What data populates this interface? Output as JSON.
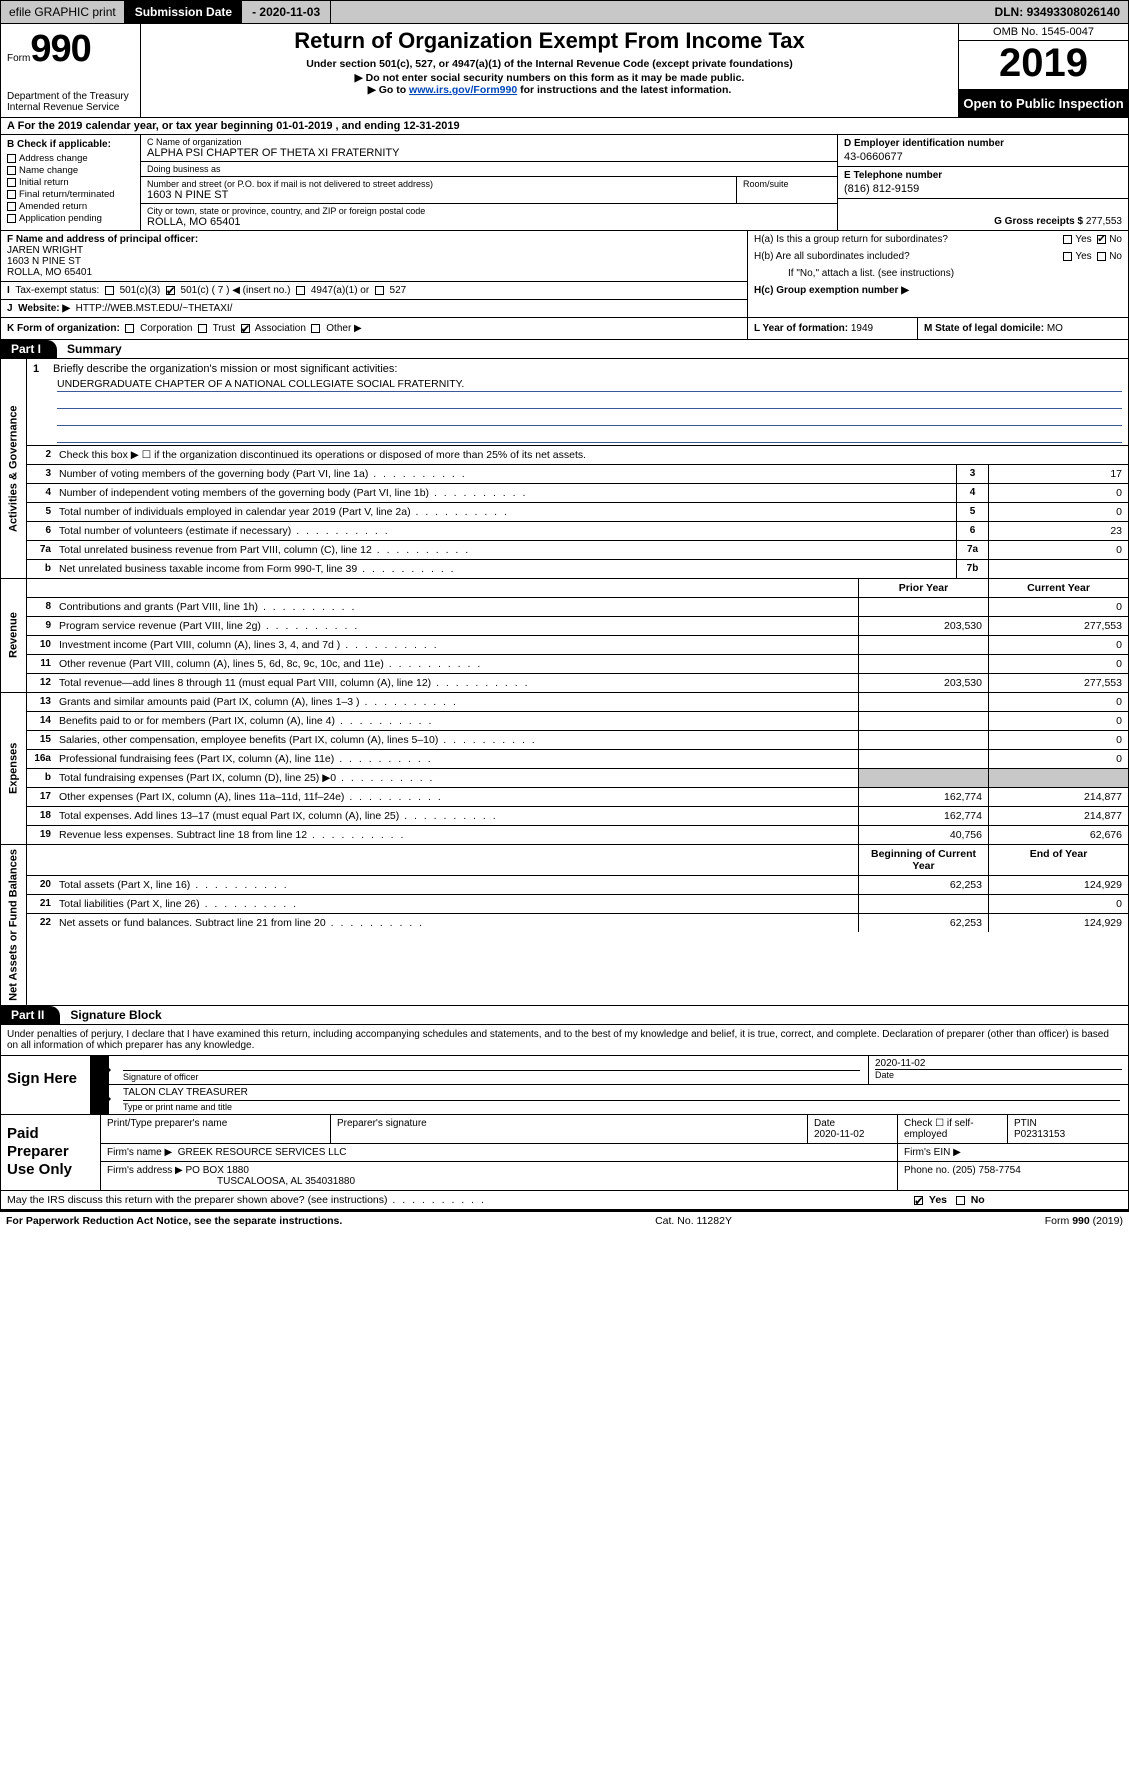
{
  "topbar": {
    "efile": "efile GRAPHIC print",
    "sub_label": "Submission Date",
    "sub_date": "2020-11-03",
    "dln_label": "DLN:",
    "dln": "93493308026140"
  },
  "header": {
    "form_word": "Form",
    "form_num": "990",
    "dept": "Department of the Treasury\nInternal Revenue Service",
    "title": "Return of Organization Exempt From Income Tax",
    "sub": "Under section 501(c), 527, or 4947(a)(1) of the Internal Revenue Code (except private foundations)",
    "line1": "Do not enter social security numbers on this form as it may be made public.",
    "line2_pre": "Go to ",
    "line2_link": "www.irs.gov/Form990",
    "line2_post": " for instructions and the latest information.",
    "omb": "OMB No. 1545-0047",
    "year": "2019",
    "open": "Open to Public Inspection"
  },
  "ty_row": "For the 2019 calendar year, or tax year beginning 01-01-2019   , and ending 12-31-2019",
  "boxB": {
    "head": "B Check if applicable:",
    "items": [
      "Address change",
      "Name change",
      "Initial return",
      "Final return/terminated",
      "Amended return",
      "Application pending"
    ]
  },
  "boxC": {
    "name_lab": "C Name of organization",
    "name": "ALPHA PSI CHAPTER OF THETA XI FRATERNITY",
    "dba_lab": "Doing business as",
    "dba": "",
    "addr_lab": "Number and street (or P.O. box if mail is not delivered to street address)",
    "room_lab": "Room/suite",
    "addr": "1603 N PINE ST",
    "city_lab": "City or town, state or province, country, and ZIP or foreign postal code",
    "city": "ROLLA, MO  65401"
  },
  "boxD": {
    "lab": "D Employer identification number",
    "val": "43-0660677"
  },
  "boxE": {
    "lab": "E Telephone number",
    "val": "(816) 812-9159"
  },
  "boxG": {
    "lab": "G Gross receipts $",
    "val": "277,553"
  },
  "boxF": {
    "lab": "F  Name and address of principal officer:",
    "name": "JAREN WRIGHT",
    "addr1": "1603 N PINE ST",
    "addr2": "ROLLA, MO  65401"
  },
  "boxH": {
    "a": "H(a)  Is this a group return for subordinates?",
    "b": "H(b)  Are all subordinates included?",
    "b_note": "If \"No,\" attach a list. (see instructions)",
    "c": "H(c)  Group exemption number ▶",
    "yes": "Yes",
    "no": "No"
  },
  "boxI": {
    "lab": "Tax-exempt status:",
    "opts": [
      "501(c)(3)",
      "501(c) ( 7 ) ◀ (insert no.)",
      "4947(a)(1) or",
      "527"
    ]
  },
  "boxJ": {
    "lab": "Website: ▶",
    "val": "HTTP://WEB.MST.EDU/~THETAXI/"
  },
  "boxK": {
    "lab": "K Form of organization:",
    "opts": [
      "Corporation",
      "Trust",
      "Association",
      "Other ▶"
    ]
  },
  "boxL": {
    "lab": "L Year of formation:",
    "val": "1949"
  },
  "boxM": {
    "lab": "M State of legal domicile:",
    "val": "MO"
  },
  "parts": {
    "p1": "Part I",
    "p1_title": "Summary",
    "p2": "Part II",
    "p2_title": "Signature Block"
  },
  "side": {
    "gov": "Activities & Governance",
    "rev": "Revenue",
    "exp": "Expenses",
    "net": "Net Assets or Fund Balances"
  },
  "mission": {
    "num": "1",
    "lab": "Briefly describe the organization's mission or most significant activities:",
    "text": "UNDERGRADUATE CHAPTER OF A NATIONAL COLLEGIATE SOCIAL FRATERNITY."
  },
  "line2": {
    "num": "2",
    "text": "Check this box ▶ ☐  if the organization discontinued its operations or disposed of more than 25% of its net assets."
  },
  "govRows": [
    {
      "n": "3",
      "t": "Number of voting members of the governing body (Part VI, line 1a)",
      "b": "3",
      "v": "17"
    },
    {
      "n": "4",
      "t": "Number of independent voting members of the governing body (Part VI, line 1b)",
      "b": "4",
      "v": "0"
    },
    {
      "n": "5",
      "t": "Total number of individuals employed in calendar year 2019 (Part V, line 2a)",
      "b": "5",
      "v": "0"
    },
    {
      "n": "6",
      "t": "Total number of volunteers (estimate if necessary)",
      "b": "6",
      "v": "23"
    },
    {
      "n": "7a",
      "t": "Total unrelated business revenue from Part VIII, column (C), line 12",
      "b": "7a",
      "v": "0"
    },
    {
      "n": "b",
      "t": "Net unrelated business taxable income from Form 990-T, line 39",
      "b": "7b",
      "v": ""
    }
  ],
  "yc": {
    "prior": "Prior Year",
    "curr": "Current Year",
    "beg": "Beginning of Current Year",
    "end": "End of Year"
  },
  "revRows": [
    {
      "n": "8",
      "t": "Contributions and grants (Part VIII, line 1h)",
      "p": "",
      "c": "0"
    },
    {
      "n": "9",
      "t": "Program service revenue (Part VIII, line 2g)",
      "p": "203,530",
      "c": "277,553"
    },
    {
      "n": "10",
      "t": "Investment income (Part VIII, column (A), lines 3, 4, and 7d )",
      "p": "",
      "c": "0"
    },
    {
      "n": "11",
      "t": "Other revenue (Part VIII, column (A), lines 5, 6d, 8c, 9c, 10c, and 11e)",
      "p": "",
      "c": "0"
    },
    {
      "n": "12",
      "t": "Total revenue—add lines 8 through 11 (must equal Part VIII, column (A), line 12)",
      "p": "203,530",
      "c": "277,553"
    }
  ],
  "expRows": [
    {
      "n": "13",
      "t": "Grants and similar amounts paid (Part IX, column (A), lines 1–3 )",
      "p": "",
      "c": "0"
    },
    {
      "n": "14",
      "t": "Benefits paid to or for members (Part IX, column (A), line 4)",
      "p": "",
      "c": "0"
    },
    {
      "n": "15",
      "t": "Salaries, other compensation, employee benefits (Part IX, column (A), lines 5–10)",
      "p": "",
      "c": "0"
    },
    {
      "n": "16a",
      "t": "Professional fundraising fees (Part IX, column (A), line 11e)",
      "p": "",
      "c": "0"
    },
    {
      "n": "b",
      "t": "Total fundraising expenses (Part IX, column (D), line 25) ▶0",
      "p": "shade",
      "c": "shade"
    },
    {
      "n": "17",
      "t": "Other expenses (Part IX, column (A), lines 11a–11d, 11f–24e)",
      "p": "162,774",
      "c": "214,877"
    },
    {
      "n": "18",
      "t": "Total expenses. Add lines 13–17 (must equal Part IX, column (A), line 25)",
      "p": "162,774",
      "c": "214,877"
    },
    {
      "n": "19",
      "t": "Revenue less expenses. Subtract line 18 from line 12",
      "p": "40,756",
      "c": "62,676"
    }
  ],
  "netRows": [
    {
      "n": "20",
      "t": "Total assets (Part X, line 16)",
      "p": "62,253",
      "c": "124,929"
    },
    {
      "n": "21",
      "t": "Total liabilities (Part X, line 26)",
      "p": "",
      "c": "0"
    },
    {
      "n": "22",
      "t": "Net assets or fund balances. Subtract line 21 from line 20",
      "p": "62,253",
      "c": "124,929"
    }
  ],
  "perjury": "Under penalties of perjury, I declare that I have examined this return, including accompanying schedules and statements, and to the best of my knowledge and belief, it is true, correct, and complete. Declaration of preparer (other than officer) is based on all information of which preparer has any knowledge.",
  "sign": {
    "lab": "Sign Here",
    "sig_lab": "Signature of officer",
    "date_lab": "Date",
    "date": "2020-11-02",
    "name": "TALON CLAY TREASURER",
    "name_lab": "Type or print name and title"
  },
  "prep": {
    "lab": "Paid Preparer Use Only",
    "c1": "Print/Type preparer's name",
    "c2": "Preparer's signature",
    "c3": "Date",
    "c3v": "2020-11-02",
    "c4": "Check ☐ if self-employed",
    "c5": "PTIN",
    "c5v": "P02313153",
    "firm_lab": "Firm's name    ▶",
    "firm": "GREEK RESOURCE SERVICES LLC",
    "ein_lab": "Firm's EIN ▶",
    "addr_lab": "Firm's address ▶",
    "addr": "PO BOX 1880",
    "addr2": "TUSCALOOSA, AL  354031880",
    "phone_lab": "Phone no.",
    "phone": "(205) 758-7754"
  },
  "discuss": {
    "q": "May the IRS discuss this return with the preparer shown above? (see instructions)",
    "yes": "Yes",
    "no": "No"
  },
  "footer": {
    "l": "For Paperwork Reduction Act Notice, see the separate instructions.",
    "m": "Cat. No. 11282Y",
    "r": "Form 990 (2019)"
  }
}
